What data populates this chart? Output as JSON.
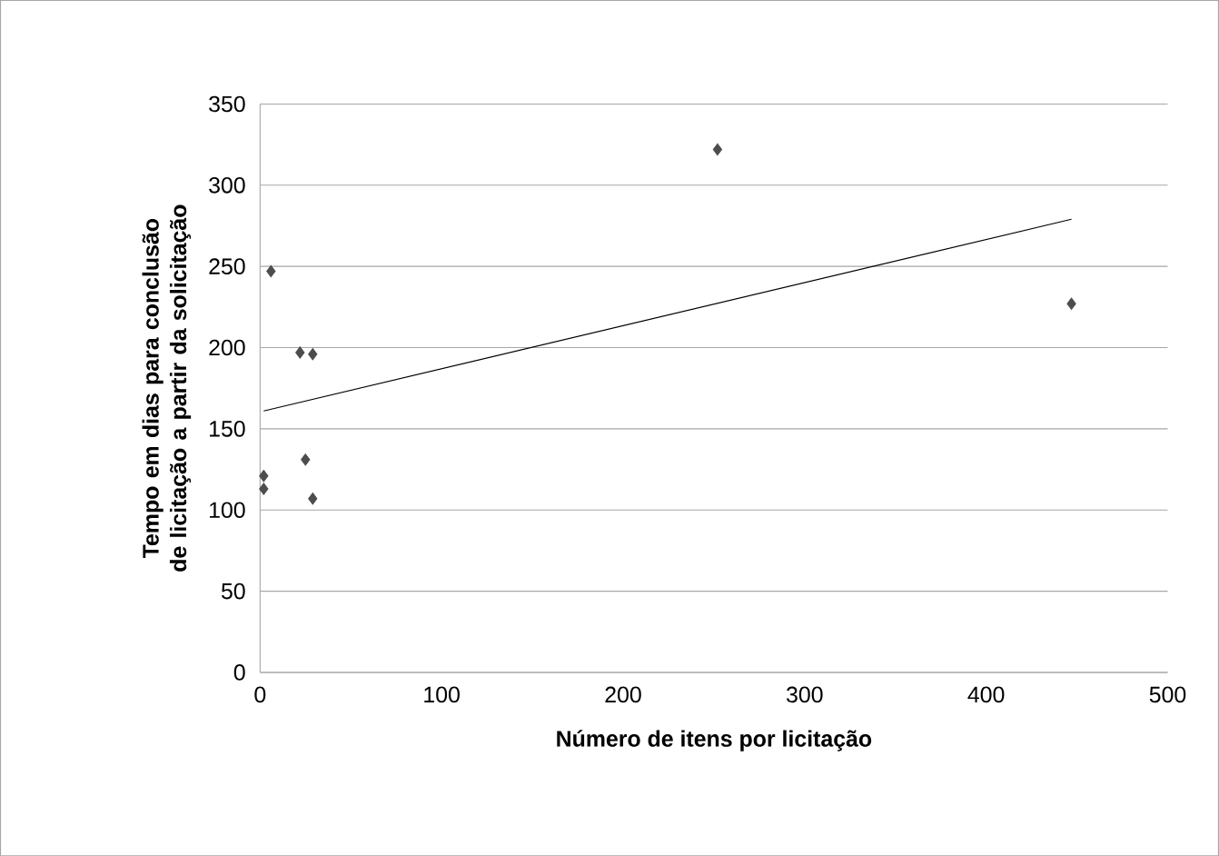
{
  "chart_data": {
    "type": "scatter",
    "xlabel": "Número de itens por licitação",
    "ylabel": "Tempo em dias para conclusão de licitação a partir da solicitação",
    "xlim": [
      0,
      500
    ],
    "ylim": [
      0,
      350
    ],
    "xticks": [
      0,
      100,
      200,
      300,
      400,
      500
    ],
    "yticks": [
      0,
      50,
      100,
      150,
      200,
      250,
      300,
      350
    ],
    "grid": "y",
    "series": [
      {
        "color": "#4d4d4d",
        "marker": "diamond",
        "x": [
          6,
          22,
          29,
          25,
          2,
          2,
          29,
          252,
          447
        ],
        "values": [
          247,
          197,
          196,
          131,
          121,
          113,
          107,
          322,
          227
        ]
      },
      {
        "type": "line",
        "marker": "none",
        "color": "#000000",
        "x": [
          2,
          447
        ],
        "values": [
          161,
          279
        ]
      }
    ]
  }
}
